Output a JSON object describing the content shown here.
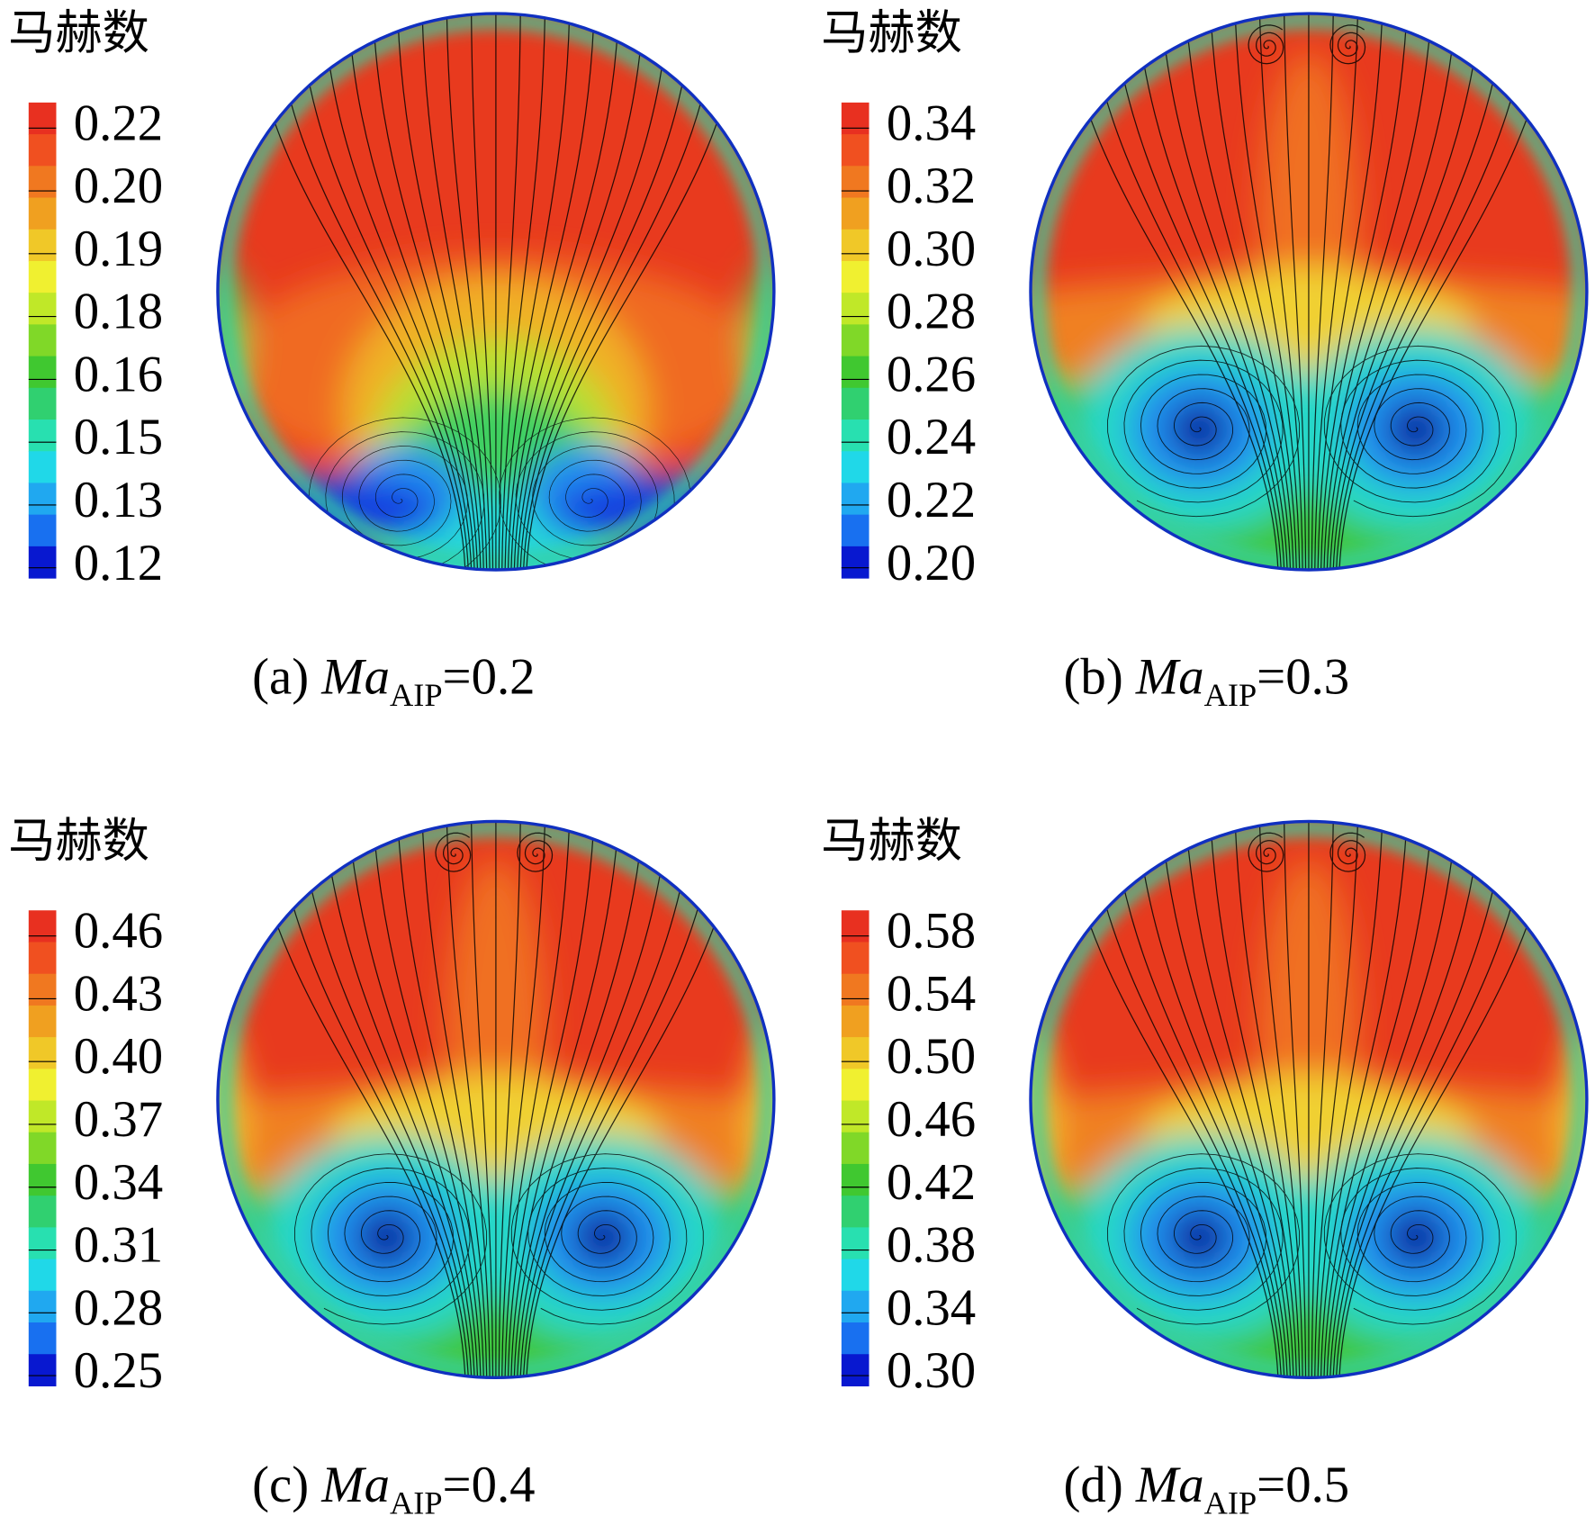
{
  "panels": [
    {
      "legend_title": "马赫数",
      "colorbar_ticks": [
        "0.22",
        "0.20",
        "0.19",
        "0.18",
        "0.16",
        "0.15",
        "0.13",
        "0.12"
      ],
      "caption": {
        "prefix": "(a) ",
        "symbol": "Ma",
        "subscript": "AIP",
        "value": "=0.2"
      }
    },
    {
      "legend_title": "马赫数",
      "colorbar_ticks": [
        "0.34",
        "0.32",
        "0.30",
        "0.28",
        "0.26",
        "0.24",
        "0.22",
        "0.20"
      ],
      "caption": {
        "prefix": "(b) ",
        "symbol": "Ma",
        "subscript": "AIP",
        "value": "=0.3"
      }
    },
    {
      "legend_title": "马赫数",
      "colorbar_ticks": [
        "0.46",
        "0.43",
        "0.40",
        "0.37",
        "0.34",
        "0.31",
        "0.28",
        "0.25"
      ],
      "caption": {
        "prefix": "(c) ",
        "symbol": "Ma",
        "subscript": "AIP",
        "value": "=0.4"
      }
    },
    {
      "legend_title": "马赫数",
      "colorbar_ticks": [
        "0.58",
        "0.54",
        "0.50",
        "0.46",
        "0.42",
        "0.38",
        "0.34",
        "0.30"
      ],
      "caption": {
        "prefix": "(d) ",
        "symbol": "Ma",
        "subscript": "AIP",
        "value": "=0.5"
      }
    }
  ]
}
